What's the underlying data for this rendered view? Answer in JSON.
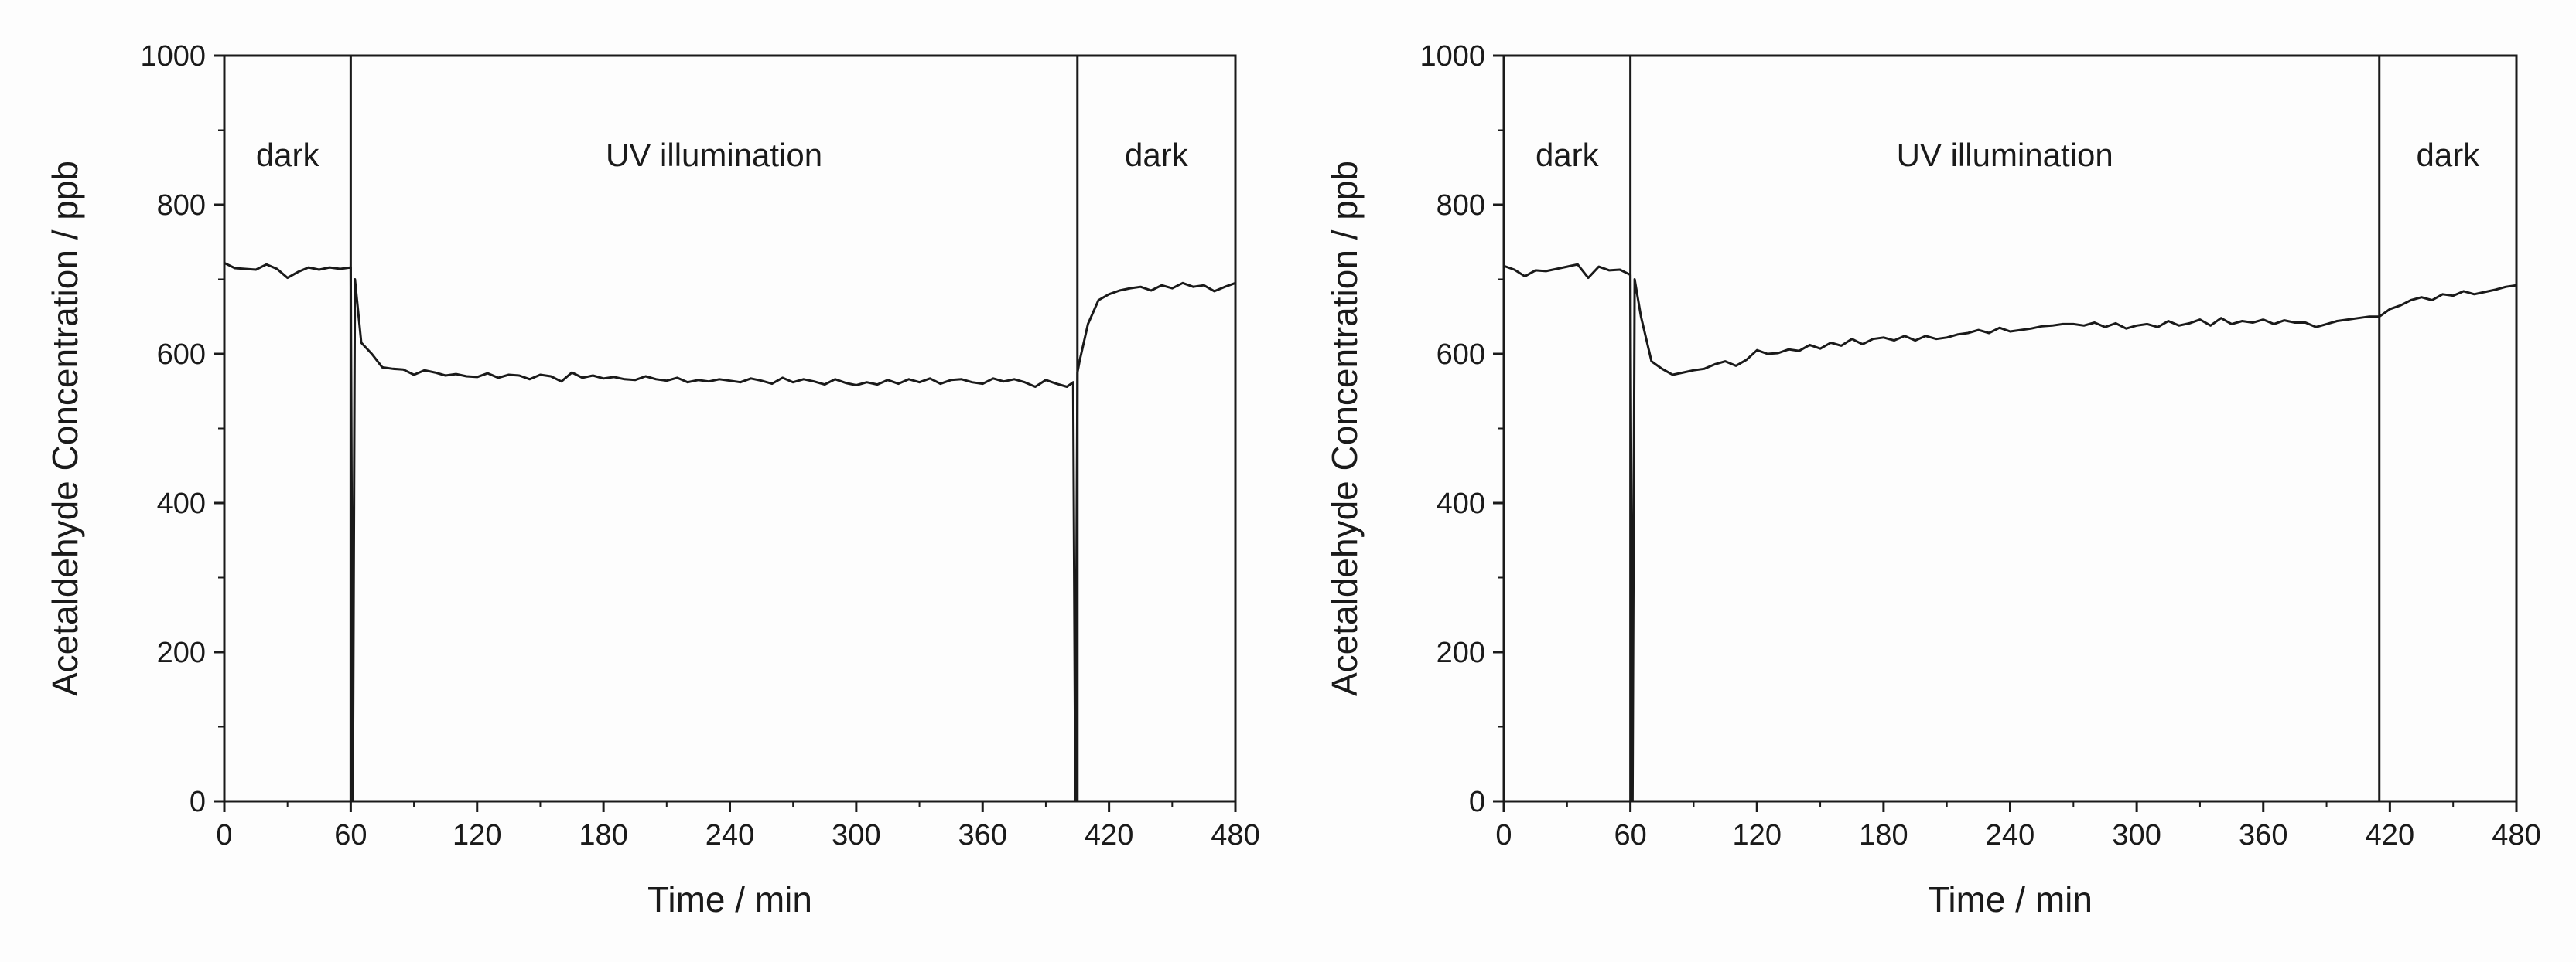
{
  "chart_data": [
    {
      "type": "line",
      "xlabel": "Time / min",
      "ylabel": "Acetaldehyde Concentration / ppb",
      "xlim": [
        0,
        480
      ],
      "ylim": [
        0,
        1000
      ],
      "xticks": [
        0,
        60,
        120,
        180,
        240,
        300,
        360,
        420,
        480
      ],
      "yticks": [
        0,
        200,
        400,
        600,
        800,
        1000
      ],
      "grid": false,
      "legend": "none",
      "line_color": "#1a1a1a",
      "regions": [
        {
          "label": "dark",
          "x_start": 0,
          "x_end": 60
        },
        {
          "label": "UV illumination",
          "x_start": 60,
          "x_end": 405
        },
        {
          "label": "dark",
          "x_start": 405,
          "x_end": 480
        }
      ],
      "boundaries": [
        60,
        405
      ],
      "series": [
        {
          "x": [
            0,
            5,
            10,
            15,
            20,
            25,
            30,
            35,
            40,
            45,
            50,
            55,
            60,
            61,
            62,
            65,
            70,
            75,
            80,
            85,
            90,
            95,
            100,
            105,
            110,
            115,
            120,
            125,
            130,
            135,
            140,
            145,
            150,
            155,
            160,
            165,
            170,
            175,
            180,
            185,
            190,
            195,
            200,
            205,
            210,
            215,
            220,
            225,
            230,
            235,
            240,
            245,
            250,
            255,
            260,
            265,
            270,
            275,
            280,
            285,
            290,
            295,
            300,
            305,
            310,
            315,
            320,
            325,
            330,
            335,
            340,
            345,
            350,
            355,
            360,
            365,
            370,
            375,
            380,
            385,
            390,
            395,
            400,
            403,
            404,
            405,
            406,
            410,
            415,
            420,
            425,
            430,
            435,
            440,
            445,
            450,
            455,
            460,
            465,
            470,
            475,
            480
          ],
          "values": [
            722,
            715,
            714,
            713,
            720,
            714,
            702,
            710,
            716,
            713,
            716,
            714,
            716,
            0,
            700,
            615,
            600,
            582,
            580,
            579,
            572,
            578,
            575,
            571,
            573,
            570,
            569,
            574,
            568,
            572,
            571,
            566,
            572,
            570,
            563,
            575,
            568,
            571,
            567,
            569,
            566,
            565,
            570,
            566,
            564,
            568,
            562,
            565,
            563,
            566,
            564,
            562,
            567,
            564,
            560,
            568,
            562,
            566,
            563,
            559,
            566,
            561,
            558,
            562,
            559,
            565,
            560,
            566,
            562,
            567,
            560,
            565,
            566,
            562,
            560,
            567,
            563,
            566,
            562,
            556,
            565,
            560,
            556,
            562,
            0,
            575,
            590,
            640,
            672,
            680,
            685,
            688,
            690,
            685,
            692,
            688,
            695,
            690,
            692,
            684,
            690,
            695
          ]
        }
      ]
    },
    {
      "type": "line",
      "xlabel": "Time / min",
      "ylabel": "Acetaldehyde Concentration / ppb",
      "xlim": [
        0,
        480
      ],
      "ylim": [
        0,
        1000
      ],
      "xticks": [
        0,
        60,
        120,
        180,
        240,
        300,
        360,
        420,
        480
      ],
      "yticks": [
        0,
        200,
        400,
        600,
        800,
        1000
      ],
      "grid": false,
      "legend": "none",
      "line_color": "#1a1a1a",
      "regions": [
        {
          "label": "dark",
          "x_start": 0,
          "x_end": 60
        },
        {
          "label": "UV illumination",
          "x_start": 60,
          "x_end": 415
        },
        {
          "label": "dark",
          "x_start": 415,
          "x_end": 480
        }
      ],
      "boundaries": [
        60,
        415
      ],
      "series": [
        {
          "x": [
            0,
            5,
            10,
            15,
            20,
            25,
            30,
            35,
            40,
            45,
            50,
            55,
            60,
            61,
            62,
            65,
            70,
            75,
            80,
            85,
            90,
            95,
            100,
            105,
            110,
            115,
            120,
            125,
            130,
            135,
            140,
            145,
            150,
            155,
            160,
            165,
            170,
            175,
            180,
            185,
            190,
            195,
            200,
            205,
            210,
            215,
            220,
            225,
            230,
            235,
            240,
            245,
            250,
            255,
            260,
            265,
            270,
            275,
            280,
            285,
            290,
            295,
            300,
            305,
            310,
            315,
            320,
            325,
            330,
            335,
            340,
            345,
            350,
            355,
            360,
            365,
            370,
            375,
            380,
            385,
            390,
            395,
            400,
            405,
            410,
            415,
            420,
            425,
            430,
            435,
            440,
            445,
            450,
            455,
            460,
            465,
            470,
            475,
            480
          ],
          "values": [
            718,
            713,
            704,
            712,
            711,
            714,
            717,
            720,
            702,
            717,
            712,
            713,
            706,
            0,
            700,
            650,
            590,
            580,
            572,
            575,
            578,
            580,
            586,
            590,
            584,
            592,
            605,
            600,
            601,
            606,
            604,
            612,
            607,
            615,
            611,
            620,
            613,
            620,
            622,
            618,
            624,
            618,
            624,
            620,
            622,
            626,
            628,
            632,
            628,
            635,
            630,
            632,
            634,
            637,
            638,
            640,
            640,
            638,
            642,
            636,
            641,
            634,
            638,
            640,
            636,
            644,
            638,
            641,
            646,
            638,
            648,
            640,
            644,
            642,
            646,
            640,
            645,
            642,
            642,
            636,
            640,
            644,
            646,
            648,
            650,
            650,
            660,
            665,
            672,
            676,
            672,
            680,
            678,
            684,
            680,
            683,
            686,
            690,
            692
          ]
        }
      ]
    }
  ]
}
